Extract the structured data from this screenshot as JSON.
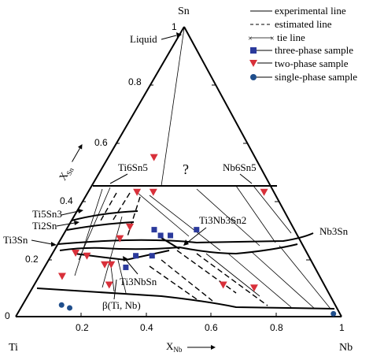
{
  "colors": {
    "square": "#2b3a9c",
    "triangle": "#d8303a",
    "circle": "#1f4e8c"
  },
  "corners": {
    "sn": "Sn",
    "ti": "Ti",
    "nb": "Nb"
  },
  "axes": {
    "x_label_main": "X",
    "x_label_sub": "Nb",
    "y_label_main": "X",
    "y_label_sub": "Sn",
    "bottom_ticks": [
      "0",
      "0.2",
      "0.4",
      "0.6",
      "0.8",
      "1"
    ],
    "left_ticks": [
      "0.2",
      "0.4",
      "0.6",
      "0.8",
      "1"
    ]
  },
  "legend": {
    "experimental": "experimental line",
    "estimated": "estimated line",
    "tie": "tie line",
    "three_phase": "three-phase sample",
    "two_phase": "two-phase sample",
    "single_phase": "single-phase sample"
  },
  "phase_labels": {
    "liquid": "Liquid",
    "ti6sn5": "Ti6Sn5",
    "nb6sn5": "Nb6Sn5",
    "unknown": "?",
    "ti5sn3": "Ti5Sn3",
    "ti2sn": "Ti2Sn",
    "ti3sn": "Ti3Sn",
    "ti3nb3sn2": "Ti3Nb3Sn2",
    "nb3sn": "Nb3Sn",
    "ti3nbsn": "Ti3NbSn",
    "beta": "β(Ti, Nb)"
  },
  "chart_data": {
    "type": "ternary",
    "components": [
      "Ti",
      "Nb",
      "Sn"
    ],
    "axis_range": [
      0,
      1
    ],
    "grid": false,
    "legend_placement": "top-right",
    "three_phase_samples": [
      {
        "x_nb": 0.27,
        "x_sn": 0.3
      },
      {
        "x_nb": 0.3,
        "x_sn": 0.28
      },
      {
        "x_nb": 0.33,
        "x_sn": 0.28
      },
      {
        "x_nb": 0.4,
        "x_sn": 0.3
      },
      {
        "x_nb": 0.25,
        "x_sn": 0.17
      },
      {
        "x_nb": 0.26,
        "x_sn": 0.21
      },
      {
        "x_nb": 0.31,
        "x_sn": 0.21
      }
    ],
    "two_phase_samples": [
      {
        "x_nb": 0.14,
        "x_sn": 0.55
      },
      {
        "x_nb": 0.15,
        "x_sn": 0.43
      },
      {
        "x_nb": 0.2,
        "x_sn": 0.43
      },
      {
        "x_nb": 0.19,
        "x_sn": 0.31
      },
      {
        "x_nb": 0.18,
        "x_sn": 0.27
      },
      {
        "x_nb": 0.07,
        "x_sn": 0.22
      },
      {
        "x_nb": 0.11,
        "x_sn": 0.21
      },
      {
        "x_nb": 0.07,
        "x_sn": 0.14
      },
      {
        "x_nb": 0.18,
        "x_sn": 0.18
      },
      {
        "x_nb": 0.2,
        "x_sn": 0.18
      },
      {
        "x_nb": 0.23,
        "x_sn": 0.11
      },
      {
        "x_nb": 0.58,
        "x_sn": 0.11
      },
      {
        "x_nb": 0.68,
        "x_sn": 0.1
      },
      {
        "x_nb": 0.54,
        "x_sn": 0.43
      }
    ],
    "single_phase_samples": [
      {
        "x_nb": 0.12,
        "x_sn": 0.04
      },
      {
        "x_nb": 0.15,
        "x_sn": 0.03
      },
      {
        "x_nb": 0.97,
        "x_sn": 0.01
      }
    ]
  }
}
